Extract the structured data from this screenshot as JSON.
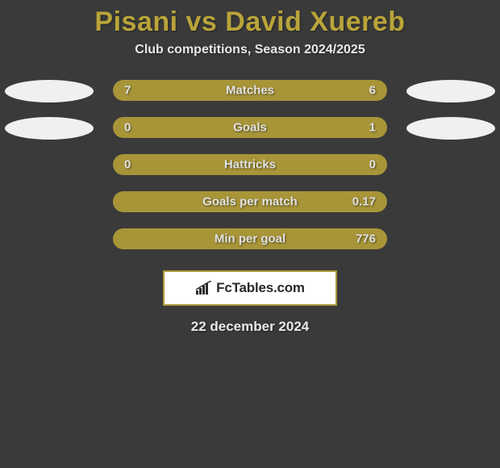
{
  "title": "Pisani vs David Xuereb",
  "subtitle": "Club competitions, Season 2024/2025",
  "date": "22 december 2024",
  "brand": "FcTables.com",
  "colors": {
    "background": "#3a3a3a",
    "accent": "#a89538",
    "title": "#b9a43a",
    "track": "#5a5a5a",
    "ellipse": "#f0f0f0",
    "text": "#e8e8e8"
  },
  "rows": [
    {
      "metric": "Matches",
      "left_val": "7",
      "right_val": "6",
      "left_pct": 54,
      "right_pct": 46,
      "left_ellipse": true,
      "right_ellipse": true
    },
    {
      "metric": "Goals",
      "left_val": "0",
      "right_val": "1",
      "left_pct": 20,
      "right_pct": 80,
      "left_ellipse": true,
      "right_ellipse": true
    },
    {
      "metric": "Hattricks",
      "left_val": "0",
      "right_val": "0",
      "left_pct": 100,
      "right_pct": 0,
      "left_ellipse": false,
      "right_ellipse": false
    },
    {
      "metric": "Goals per match",
      "left_val": "",
      "right_val": "0.17",
      "left_pct": 0,
      "right_pct": 100,
      "left_ellipse": false,
      "right_ellipse": false
    },
    {
      "metric": "Min per goal",
      "left_val": "",
      "right_val": "776",
      "left_pct": 0,
      "right_pct": 100,
      "left_ellipse": false,
      "right_ellipse": false
    }
  ]
}
